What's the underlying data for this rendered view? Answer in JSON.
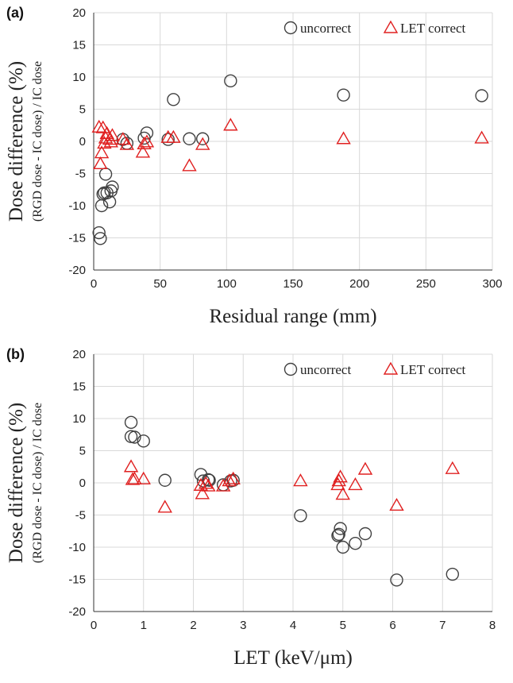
{
  "chart_data": [
    {
      "type": "scatter",
      "panel_label": "(a)",
      "xlabel": "Residual range (mm)",
      "ylabel": "Dose difference (%)",
      "ylabel_sub": "(RGD dose - IC dose) / IC dose",
      "xlim": [
        0,
        300
      ],
      "ylim": [
        -20,
        20
      ],
      "xticks": [
        0,
        50,
        100,
        150,
        200,
        250,
        300
      ],
      "yticks": [
        -20,
        -15,
        -10,
        -5,
        0,
        5,
        10,
        15,
        20
      ],
      "grid": true,
      "legend_position": "top-right",
      "series": [
        {
          "name": "uncorrect",
          "marker": "circle",
          "color": "#404040",
          "points": [
            [
              4,
              -14.2
            ],
            [
              5,
              -15.1
            ],
            [
              6,
              -10.0
            ],
            [
              7,
              -8.2
            ],
            [
              8,
              -8.0
            ],
            [
              9,
              -5.1
            ],
            [
              10,
              -8.0
            ],
            [
              12,
              -9.4
            ],
            [
              13,
              -7.7
            ],
            [
              14,
              -7.1
            ],
            [
              22,
              0.3
            ],
            [
              25,
              -0.3
            ],
            [
              38,
              0.5
            ],
            [
              40,
              1.3
            ],
            [
              56,
              0.3
            ],
            [
              60,
              6.5
            ],
            [
              72,
              0.4
            ],
            [
              82,
              0.4
            ],
            [
              103,
              9.4
            ],
            [
              188,
              7.2
            ],
            [
              292,
              7.1
            ]
          ]
        },
        {
          "name": "LET correct",
          "marker": "triangle",
          "color": "#e02020",
          "points": [
            [
              4,
              2.2
            ],
            [
              5,
              -3.5
            ],
            [
              6,
              -1.8
            ],
            [
              7,
              2.1
            ],
            [
              8,
              -0.3
            ],
            [
              9,
              0.5
            ],
            [
              10,
              1.2
            ],
            [
              12,
              0.3
            ],
            [
              13,
              -0.1
            ],
            [
              14,
              0.9
            ],
            [
              22,
              0.3
            ],
            [
              25,
              -0.5
            ],
            [
              37,
              -1.7
            ],
            [
              38,
              -0.4
            ],
            [
              40,
              -0.1
            ],
            [
              56,
              0.6
            ],
            [
              60,
              0.6
            ],
            [
              72,
              -3.8
            ],
            [
              82,
              -0.5
            ],
            [
              103,
              2.5
            ],
            [
              188,
              0.4
            ],
            [
              292,
              0.5
            ]
          ]
        }
      ]
    },
    {
      "type": "scatter",
      "panel_label": "(b)",
      "xlabel": "LET (keV/μm)",
      "ylabel": "Dose difference (%)",
      "ylabel_sub": "(RGD dose - IC dose) / IC dose",
      "xlim": [
        0,
        8
      ],
      "ylim": [
        -20,
        20
      ],
      "xticks": [
        0,
        1,
        2,
        3,
        4,
        5,
        6,
        7,
        8
      ],
      "yticks": [
        -20,
        -15,
        -10,
        -5,
        0,
        5,
        10,
        15,
        20
      ],
      "grid": true,
      "legend_position": "top-right",
      "series": [
        {
          "name": "uncorrect",
          "marker": "circle",
          "color": "#404040",
          "points": [
            [
              0.75,
              9.4
            ],
            [
              0.75,
              7.2
            ],
            [
              0.82,
              7.1
            ],
            [
              1.0,
              6.5
            ],
            [
              1.43,
              0.4
            ],
            [
              2.15,
              1.3
            ],
            [
              2.2,
              0.3
            ],
            [
              2.3,
              0.5
            ],
            [
              2.32,
              0.4
            ],
            [
              2.6,
              -0.3
            ],
            [
              2.75,
              0.3
            ],
            [
              2.8,
              0.4
            ],
            [
              4.15,
              -5.1
            ],
            [
              4.9,
              -8.2
            ],
            [
              4.92,
              -8.0
            ],
            [
              4.95,
              -7.1
            ],
            [
              5.0,
              -10.0
            ],
            [
              5.25,
              -9.4
            ],
            [
              5.45,
              -7.9
            ],
            [
              6.08,
              -15.1
            ],
            [
              7.2,
              -14.2
            ]
          ]
        },
        {
          "name": "LET correct",
          "marker": "triangle",
          "color": "#e02020",
          "points": [
            [
              0.75,
              2.5
            ],
            [
              0.78,
              0.5
            ],
            [
              0.82,
              0.6
            ],
            [
              1.0,
              0.6
            ],
            [
              1.43,
              -3.8
            ],
            [
              2.15,
              -0.4
            ],
            [
              2.18,
              -1.7
            ],
            [
              2.25,
              -0.1
            ],
            [
              2.3,
              -0.5
            ],
            [
              2.6,
              -0.5
            ],
            [
              2.72,
              0.3
            ],
            [
              2.8,
              0.6
            ],
            [
              4.15,
              0.3
            ],
            [
              4.9,
              -0.3
            ],
            [
              4.92,
              0.3
            ],
            [
              4.95,
              0.9
            ],
            [
              5.0,
              -1.8
            ],
            [
              5.25,
              -0.3
            ],
            [
              5.45,
              2.1
            ],
            [
              6.08,
              -3.5
            ],
            [
              7.2,
              2.2
            ]
          ]
        }
      ]
    }
  ]
}
